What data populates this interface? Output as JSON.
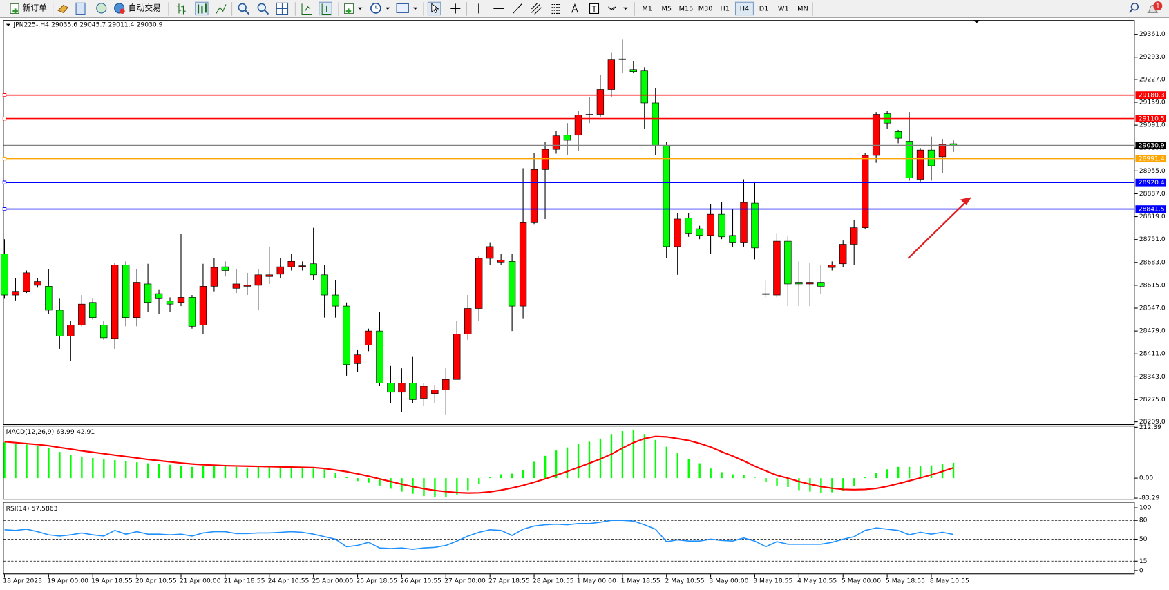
{
  "toolbar": {
    "new_order": "新订单",
    "auto_trading": "自动交易",
    "timeframes": [
      "M1",
      "M5",
      "M15",
      "M30",
      "H1",
      "H4",
      "D1",
      "W1",
      "MN"
    ],
    "active_timeframe": "H4",
    "notifications": 1
  },
  "chart_data": {
    "type": "candlestick",
    "title": "JPN225-,H4",
    "categories": [
      "18 Apr 2023",
      null,
      null,
      null,
      "19 Apr 00:00",
      null,
      null,
      null,
      "19 Apr 18:55",
      null,
      null,
      null,
      "20 Apr 10:55",
      null,
      null,
      null,
      "21 Apr 00:00",
      null,
      null,
      null,
      "21 Apr 18:55",
      null,
      null,
      null,
      "24 Apr 10:55",
      null,
      null,
      null,
      "25 Apr 00:00",
      null,
      null,
      null,
      "25 Apr 18:55",
      null,
      null,
      null,
      "26 Apr 10:55",
      null,
      null,
      null,
      "27 Apr 00:00",
      null,
      null,
      null,
      "27 Apr 18:55",
      null,
      null,
      null,
      "28 Apr 10:55",
      null,
      null,
      null,
      "1 May 00:00",
      null,
      null,
      null,
      "1 May 18:55",
      null,
      null,
      null,
      "2 May 10:55",
      null,
      null,
      null,
      "3 May 00:00",
      null,
      null,
      null,
      "3 May 18:55",
      null,
      null,
      null,
      "4 May 10:55",
      null,
      null,
      null,
      "5 May 00:00",
      null,
      null,
      null,
      "5 May 18:55",
      null,
      null,
      null,
      "8 May 10:55",
      null,
      null
    ],
    "open": [
      28708,
      28586,
      28597,
      28615,
      28612,
      28541,
      28464,
      28497,
      28564,
      28497,
      28457,
      28675,
      28519,
      28619,
      28590,
      28568,
      28564,
      28579,
      28497,
      28612,
      28670,
      28606,
      28612,
      28615,
      28641,
      28648,
      28670,
      28672,
      28679,
      28646,
      28586,
      28553,
      28382,
      28437,
      28479,
      28324,
      28297,
      28324,
      28279,
      28293,
      28304,
      28335,
      28470,
      28546,
      28695,
      28684,
      28686,
      28553,
      28801,
      28959,
      29019,
      29061,
      29061,
      29123,
      29123,
      29197,
      29288,
      29256,
      29252,
      29157,
      29030,
      28730,
      28815,
      28783,
      28763,
      28826,
      28763,
      28741,
      28859,
      28590,
      28586,
      28746,
      28624,
      28619,
      28624,
      28668,
      28679,
      28737,
      28786,
      29001,
      29125,
      29072,
      29043,
      28930,
      29017,
      28997,
      29035.6
    ],
    "high": [
      28752,
      28637,
      28659,
      28637,
      28664,
      28575,
      28508,
      28586,
      28575,
      28508,
      28681,
      28686,
      28664,
      28679,
      28601,
      28579,
      28768,
      28586,
      28679,
      28697,
      28686,
      28664,
      28652,
      28664,
      28730,
      28697,
      28708,
      28686,
      28786,
      28675,
      28630,
      28564,
      28424,
      28486,
      28535,
      28375,
      28368,
      28402,
      28324,
      28319,
      28368,
      28508,
      28586,
      28701,
      28741,
      28708,
      28708,
      28963,
      29008,
      29041,
      29074,
      29097,
      29134,
      29174,
      29241,
      29308,
      29345,
      29281,
      29263,
      29201,
      29041,
      28830,
      28830,
      28792,
      28857,
      28863,
      28841,
      28930,
      28923,
      28630,
      28770,
      28763,
      28686,
      28681,
      28675,
      28686,
      28748,
      28810,
      29008,
      29130,
      29134,
      29077,
      29130,
      29023,
      29057,
      29050,
      29045.7
    ],
    "low": [
      28575,
      28570,
      28592,
      28608,
      28530,
      28426,
      28390,
      28493,
      28513,
      28453,
      28426,
      28493,
      28493,
      28535,
      28530,
      28535,
      28553,
      28486,
      28470,
      28597,
      28641,
      28592,
      28586,
      28541,
      28619,
      28637,
      28659,
      28659,
      28630,
      28519,
      28519,
      28346,
      28357,
      28419,
      28315,
      28264,
      28237,
      28264,
      28257,
      28264,
      28231,
      28335,
      28453,
      28508,
      28675,
      28675,
      28479,
      28515,
      28797,
      28812,
      29006,
      29003,
      29014,
      29097,
      29114,
      29174,
      29245,
      29245,
      29081,
      29001,
      28697,
      28646,
      28759,
      28752,
      28708,
      28752,
      28730,
      28730,
      28692,
      28579,
      28579,
      28553,
      28553,
      28553,
      28590,
      28659,
      28670,
      28675,
      28781,
      28979,
      29081,
      29037,
      28926,
      28923,
      28926,
      28948,
      29011.4
    ],
    "close": [
      28586,
      28597,
      28652,
      28626,
      28541,
      28464,
      28497,
      28559,
      28519,
      28459,
      28675,
      28519,
      28624,
      28564,
      28575,
      28559,
      28579,
      28493,
      28612,
      28668,
      28659,
      28619,
      28615,
      28646,
      28646,
      28670,
      28686,
      28673,
      28646,
      28586,
      28553,
      28379,
      28408,
      28479,
      28324,
      28297,
      28324,
      28275,
      28315,
      28304,
      28335,
      28470,
      28546,
      28695,
      28730,
      28690,
      28553,
      28801,
      28959,
      29019,
      29059,
      29046,
      29121,
      29123,
      29197,
      29285,
      29287,
      29250,
      29157,
      29030,
      28730,
      28812,
      28770,
      28763,
      28826,
      28759,
      28741,
      28861,
      28726,
      28588,
      28746,
      28619,
      28619,
      28624,
      28612,
      28675,
      28737,
      28786,
      29001,
      29123,
      29097,
      29052,
      28934,
      29017,
      28970,
      29034,
      29030.9
    ],
    "bull_color": "#ff0000",
    "bear_color": "#00ff00",
    "ylim": [
      28202,
      29403
    ],
    "yticks": [
      {
        "value": 29361,
        "label": "29361.0"
      },
      {
        "value": 29293,
        "label": "29293.0"
      },
      {
        "value": 29227,
        "label": "29227.0"
      },
      {
        "value": 29159,
        "label": "29159.0"
      },
      {
        "value": 29091,
        "label": "29091.0"
      },
      {
        "value": 29023,
        "label": "29023.0"
      },
      {
        "value": 28955,
        "label": "28955.0"
      },
      {
        "value": 28887,
        "label": "28887.0"
      },
      {
        "value": 28819,
        "label": "28819.0"
      },
      {
        "value": 28751,
        "label": "28751.0"
      },
      {
        "value": 28683,
        "label": "28683.0"
      },
      {
        "value": 28615,
        "label": "28615.0"
      },
      {
        "value": 28547,
        "label": "28547.0"
      },
      {
        "value": 28479,
        "label": "28479.0"
      },
      {
        "value": 28411,
        "label": "28411.0"
      },
      {
        "value": 28343,
        "label": "28343.0"
      },
      {
        "value": 28275,
        "label": "28275.0"
      },
      {
        "value": 28209,
        "label": "28209.0"
      }
    ],
    "levels": [
      {
        "value": 29180.3,
        "color": "#ff0000"
      },
      {
        "value": 29110.5,
        "color": "#ff0000"
      },
      {
        "value": 28991.4,
        "color": "#ffa500"
      },
      {
        "value": 28920.4,
        "color": "#0000ff"
      },
      {
        "value": 28841.5,
        "color": "#0000ff"
      }
    ],
    "bid_line_color": "#808080",
    "macd": {
      "label": "MACD(12,26,9)",
      "histogram": [
        149,
        143,
        140,
        134,
        124,
        109,
        96,
        90,
        84,
        78,
        75,
        72,
        66,
        62,
        59,
        56,
        50,
        47,
        50,
        50,
        50,
        47,
        44,
        47,
        47,
        47,
        47,
        44,
        40,
        37,
        22,
        6,
        -12,
        -19,
        -31,
        -44,
        -56,
        -65,
        -75,
        -78,
        -78,
        -68,
        -50,
        -25,
        6,
        16,
        19,
        34,
        68,
        93,
        115,
        128,
        143,
        152,
        165,
        184,
        196,
        199,
        184,
        159,
        131,
        106,
        81,
        62,
        40,
        25,
        16,
        12,
        2,
        -16,
        -31,
        -37,
        -50,
        -56,
        -62,
        -59,
        -53,
        -34,
        3,
        22,
        37,
        47,
        47,
        50,
        53,
        59,
        63.99
      ],
      "signal": [
        152,
        148,
        144,
        140,
        135,
        128,
        121,
        114,
        108,
        102,
        96,
        90,
        84,
        78,
        73,
        68,
        63,
        59,
        56,
        54,
        52,
        51,
        50,
        49,
        48,
        47,
        46,
        45,
        44,
        40,
        34,
        27,
        18,
        8,
        -3,
        -14,
        -25,
        -35,
        -44,
        -51,
        -56,
        -60,
        -62,
        -61,
        -57,
        -50,
        -41,
        -30,
        -17,
        -3,
        12,
        28,
        45,
        62,
        80,
        100,
        125,
        148,
        165,
        174,
        172,
        165,
        157,
        145,
        130,
        110,
        92,
        72,
        50,
        30,
        12,
        0,
        -14,
        -25,
        -35,
        -42,
        -47,
        -48,
        -47,
        -43,
        -34,
        -23,
        -11,
        1,
        14,
        28,
        42.91
      ],
      "histogram_color": "#00ff00",
      "signal_color": "#ff0000",
      "ylim": [
        -83.29,
        212.39
      ],
      "yticks": [
        212.39,
        {
          "value": 0,
          "label": "0.00"
        },
        -83.29
      ]
    },
    "rsi": {
      "label": "RSI(14)",
      "values": [
        65,
        64,
        66,
        62,
        57,
        55,
        57,
        60,
        57,
        55,
        64,
        58,
        62,
        58,
        58,
        57,
        58,
        55,
        60,
        62,
        62,
        59,
        59,
        60,
        60,
        61,
        62,
        61,
        58,
        54,
        50,
        38,
        40,
        45,
        36,
        35,
        36,
        34,
        36,
        37,
        40,
        47,
        55,
        61,
        65,
        64,
        56,
        66,
        71,
        73,
        74,
        73,
        75,
        75,
        77,
        80,
        80,
        79,
        73,
        66,
        46,
        49,
        47,
        47,
        50,
        48,
        47,
        52,
        47,
        38,
        46,
        42,
        42,
        42,
        42,
        45,
        50,
        54,
        64,
        68,
        66,
        64,
        57,
        61,
        58,
        61,
        57.5863
      ],
      "color": "#1e90ff",
      "ylim": [
        0,
        100
      ],
      "yticks": [
        100,
        80,
        50,
        15,
        0
      ],
      "levels": [
        80,
        50,
        15
      ]
    }
  }
}
